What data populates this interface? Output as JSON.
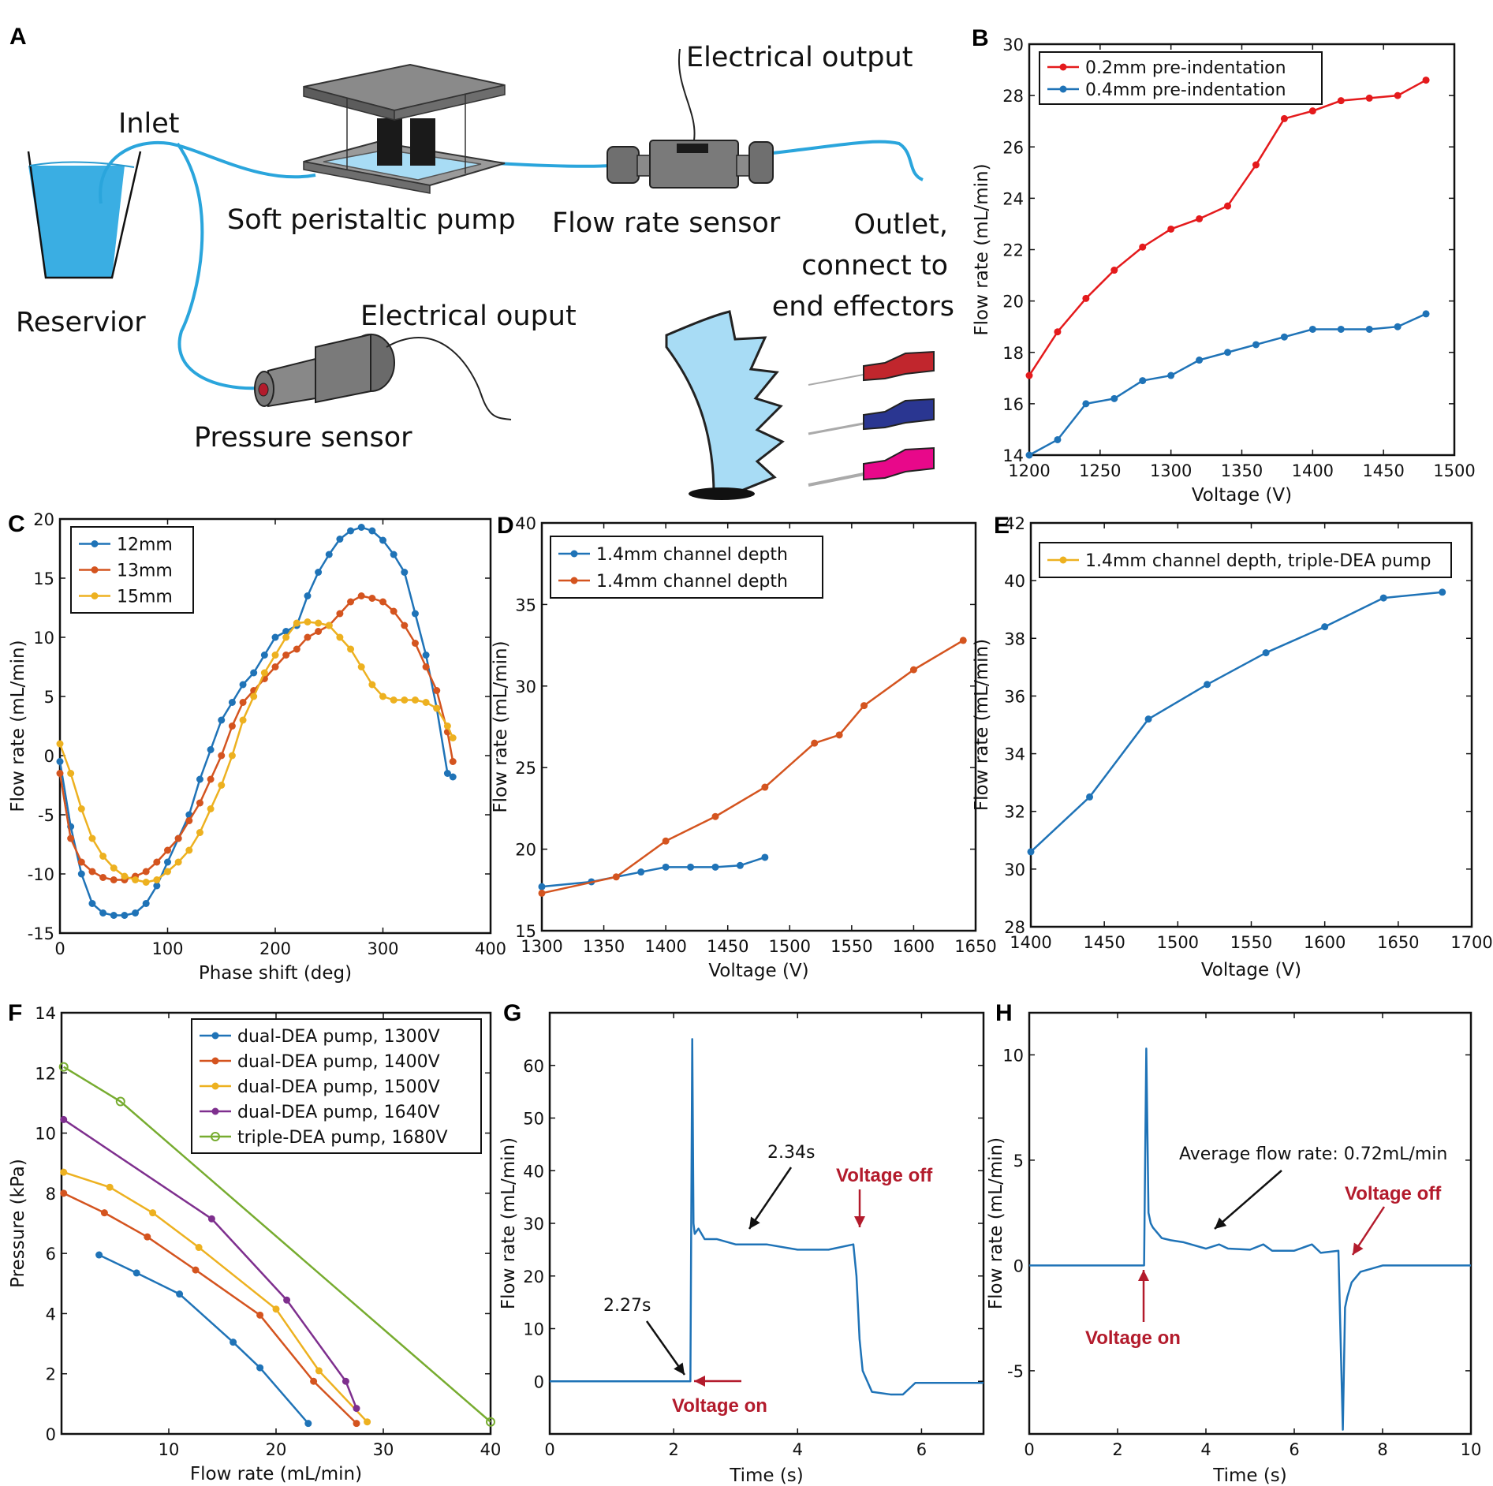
{
  "colors": {
    "blue": "#1f73b7",
    "orange": "#d4541f",
    "yellow": "#edb120",
    "purple": "#7e2f8e",
    "green": "#77ac30",
    "red": "#e41a1c",
    "water": "#a8dcf5",
    "tube": "#2aa5dc",
    "annotation_red": "#b31b2c"
  },
  "panel_letters": [
    "A",
    "B",
    "C",
    "D",
    "E",
    "F",
    "G",
    "H"
  ],
  "schematic": {
    "inlet": "Inlet",
    "reservoir": "Reservior",
    "pump": "Soft peristaltic pump",
    "electrical_output_top": "Electrical output",
    "flow_sensor": "Flow rate sensor",
    "outlet_line1": "Outlet,",
    "outlet_line2": "connect to",
    "outlet_line3": "end effectors",
    "electrical_output_pressure": "Electrical ouput",
    "pressure_sensor": "Pressure sensor",
    "icons": [
      "reservoir-beaker-icon",
      "peristaltic-pump-icon",
      "flow-sensor-icon",
      "pressure-sensor-icon",
      "soft-gripper-icon",
      "dispensing-needle-icon"
    ]
  },
  "chart_data": [
    {
      "panel": "B",
      "type": "line",
      "xlabel": "Voltage (V)",
      "ylabel": "Flow rate (mL/min)",
      "xlim": [
        1200,
        1500
      ],
      "ylim": [
        14,
        30
      ],
      "xticks": [
        1200,
        1250,
        1300,
        1350,
        1400,
        1450,
        1500
      ],
      "yticks": [
        14,
        16,
        18,
        20,
        22,
        24,
        26,
        28,
        30
      ],
      "legend_position": "top-left",
      "series": [
        {
          "name": "0.2mm pre-indentation",
          "color": "#e41a1c",
          "marker": "dot",
          "x": [
            1200,
            1220,
            1240,
            1260,
            1280,
            1300,
            1320,
            1340,
            1360,
            1380,
            1400,
            1420,
            1440,
            1460,
            1480
          ],
          "y": [
            17.1,
            18.8,
            20.1,
            21.2,
            22.1,
            22.8,
            23.2,
            23.7,
            25.3,
            27.1,
            27.4,
            27.8,
            27.9,
            28.0,
            28.6
          ]
        },
        {
          "name": "0.4mm pre-indentation",
          "color": "#1f73b7",
          "marker": "dot",
          "x": [
            1200,
            1220,
            1240,
            1260,
            1280,
            1300,
            1320,
            1340,
            1360,
            1380,
            1400,
            1420,
            1440,
            1460,
            1480
          ],
          "y": [
            14.0,
            14.6,
            16.0,
            16.2,
            16.9,
            17.1,
            17.7,
            18.0,
            18.3,
            18.6,
            18.9,
            18.9,
            18.9,
            19.0,
            19.5
          ]
        }
      ]
    },
    {
      "panel": "C",
      "type": "line",
      "xlabel": "Phase shift (deg)",
      "ylabel": "Flow rate (mL/min)",
      "xlim": [
        0,
        400
      ],
      "ylim": [
        -15,
        20
      ],
      "xticks": [
        0,
        100,
        200,
        300,
        400
      ],
      "yticks": [
        -15,
        -10,
        -5,
        0,
        5,
        10,
        15,
        20
      ],
      "legend_position": "top-left",
      "series": [
        {
          "name": "12mm",
          "color": "#1f73b7",
          "marker": "dot",
          "x": [
            0,
            10,
            20,
            30,
            40,
            50,
            60,
            70,
            80,
            90,
            100,
            110,
            120,
            130,
            140,
            150,
            160,
            170,
            180,
            190,
            200,
            210,
            220,
            230,
            240,
            250,
            260,
            270,
            280,
            290,
            300,
            310,
            320,
            330,
            340,
            350,
            360,
            365
          ],
          "y": [
            -0.5,
            -6,
            -10,
            -12.5,
            -13.3,
            -13.5,
            -13.5,
            -13.3,
            -12.5,
            -11,
            -9,
            -7,
            -5,
            -2,
            0.5,
            3,
            4.5,
            6,
            7,
            8.5,
            10,
            10.5,
            11,
            13.5,
            15.5,
            17,
            18.3,
            19,
            19.3,
            19,
            18.2,
            17,
            15.5,
            12,
            8.5,
            4,
            -1.5,
            -1.8
          ]
        },
        {
          "name": "13mm",
          "color": "#d4541f",
          "marker": "dot",
          "x": [
            0,
            10,
            20,
            30,
            40,
            50,
            60,
            70,
            80,
            90,
            100,
            110,
            120,
            130,
            140,
            150,
            160,
            170,
            180,
            190,
            200,
            210,
            220,
            230,
            240,
            250,
            260,
            270,
            280,
            290,
            300,
            310,
            320,
            330,
            340,
            350,
            360,
            365
          ],
          "y": [
            -1.5,
            -7,
            -9,
            -9.8,
            -10.3,
            -10.5,
            -10.5,
            -10.2,
            -9.8,
            -9,
            -8,
            -7,
            -5.5,
            -4,
            -2,
            0,
            2.5,
            4.5,
            5.5,
            6.5,
            7.5,
            8.5,
            9,
            10,
            10.5,
            11,
            12,
            13,
            13.5,
            13.3,
            13,
            12.2,
            11,
            9.5,
            7.5,
            5.5,
            2,
            -0.5
          ]
        },
        {
          "name": "15mm",
          "color": "#edb120",
          "marker": "dot",
          "x": [
            0,
            10,
            20,
            30,
            40,
            50,
            60,
            70,
            80,
            90,
            100,
            110,
            120,
            130,
            140,
            150,
            160,
            170,
            180,
            190,
            200,
            210,
            220,
            230,
            240,
            250,
            260,
            270,
            280,
            290,
            300,
            310,
            320,
            330,
            340,
            350,
            360,
            365
          ],
          "y": [
            1,
            -1.5,
            -4.5,
            -7,
            -8.5,
            -9.5,
            -10.2,
            -10.5,
            -10.7,
            -10.5,
            -9.8,
            -9,
            -8,
            -6.5,
            -4.5,
            -2.5,
            0,
            3,
            5,
            7,
            8.5,
            10,
            11.2,
            11.3,
            11.2,
            11,
            10,
            9,
            7.5,
            6,
            5,
            4.7,
            4.7,
            4.7,
            4.5,
            4,
            2.5,
            1.5
          ]
        }
      ]
    },
    {
      "panel": "D",
      "type": "line",
      "xlabel": "Voltage (V)",
      "ylabel": "Flow rate (mL/min)",
      "xlim": [
        1300,
        1650
      ],
      "ylim": [
        15,
        40
      ],
      "xticks": [
        1300,
        1350,
        1400,
        1450,
        1500,
        1550,
        1600,
        1650
      ],
      "yticks": [
        15,
        20,
        25,
        30,
        35,
        40
      ],
      "legend_position": "top-left",
      "series": [
        {
          "name": "1.4mm channel depth",
          "color": "#1f73b7",
          "marker": "dot",
          "x": [
            1300,
            1340,
            1380,
            1400,
            1420,
            1440,
            1460,
            1480
          ],
          "y": [
            17.7,
            18.0,
            18.6,
            18.9,
            18.9,
            18.9,
            19.0,
            19.5
          ]
        },
        {
          "name": "1.4mm channel depth",
          "color": "#d4541f",
          "marker": "dot",
          "x": [
            1300,
            1360,
            1400,
            1440,
            1480,
            1520,
            1540,
            1560,
            1600,
            1640
          ],
          "y": [
            17.3,
            18.3,
            20.5,
            22.0,
            23.8,
            26.5,
            27.0,
            28.8,
            31.0,
            32.8
          ]
        }
      ]
    },
    {
      "panel": "E",
      "type": "line",
      "xlabel": "Voltage (V)",
      "ylabel": "Flow rate (mL/min)",
      "xlim": [
        1400,
        1700
      ],
      "ylim": [
        28,
        42
      ],
      "xticks": [
        1400,
        1450,
        1500,
        1550,
        1600,
        1650,
        1700
      ],
      "yticks": [
        28,
        30,
        32,
        34,
        36,
        38,
        40,
        42
      ],
      "legend_position": "top",
      "legend_color": "#edb120",
      "series": [
        {
          "name": "1.4mm channel depth, triple-DEA pump",
          "color": "#1f73b7",
          "marker": "dot",
          "x": [
            1400,
            1440,
            1480,
            1520,
            1560,
            1600,
            1640,
            1680
          ],
          "y": [
            30.6,
            32.5,
            35.2,
            36.4,
            37.5,
            38.4,
            39.4,
            39.6
          ]
        }
      ]
    },
    {
      "panel": "F",
      "type": "line",
      "xlabel": "Flow rate (mL/min)",
      "ylabel": "Pressure (kPa)",
      "xlim": [
        0,
        40
      ],
      "ylim": [
        0,
        14
      ],
      "xticks": [
        10,
        20,
        30,
        40
      ],
      "yticks": [
        0,
        2,
        4,
        6,
        8,
        10,
        12,
        14
      ],
      "legend_position": "top-right",
      "series": [
        {
          "name": "dual-DEA pump, 1300V",
          "color": "#1f73b7",
          "marker": "dot",
          "x": [
            3.5,
            7,
            11,
            16,
            18.5,
            23
          ],
          "y": [
            5.95,
            5.35,
            4.65,
            3.05,
            2.2,
            0.35
          ]
        },
        {
          "name": "dual-DEA pump, 1400V",
          "color": "#d4541f",
          "marker": "dot",
          "x": [
            0.2,
            4,
            8,
            12.5,
            18.5,
            23.5,
            27.5
          ],
          "y": [
            8.0,
            7.35,
            6.55,
            5.45,
            3.95,
            1.75,
            0.35
          ]
        },
        {
          "name": "dual-DEA pump, 1500V",
          "color": "#edb120",
          "marker": "dot",
          "x": [
            0.2,
            4.5,
            8.5,
            12.8,
            20,
            24,
            28.5
          ],
          "y": [
            8.7,
            8.2,
            7.35,
            6.2,
            4.15,
            2.1,
            0.4
          ]
        },
        {
          "name": "dual-DEA pump, 1640V",
          "color": "#7e2f8e",
          "marker": "dot",
          "x": [
            0.2,
            14,
            21,
            26.5,
            27.5
          ],
          "y": [
            10.45,
            7.15,
            4.45,
            1.75,
            0.85
          ]
        },
        {
          "name": "triple-DEA pump, 1680V",
          "color": "#77ac30",
          "marker": "circle",
          "x": [
            0.2,
            5.5,
            40
          ],
          "y": [
            12.2,
            11.05,
            0.4
          ]
        }
      ]
    },
    {
      "panel": "G",
      "type": "line",
      "xlabel": "Time (s)",
      "ylabel": "Flow rate (mL/min)",
      "xlim": [
        0,
        7
      ],
      "ylim": [
        -10,
        70
      ],
      "xticks": [
        0,
        2,
        4,
        6
      ],
      "yticks": [
        0,
        10,
        20,
        30,
        40,
        50,
        60
      ],
      "annotations": {
        "t1": "2.27s",
        "t2": "2.34s",
        "on": "Voltage on",
        "off": "Voltage off"
      },
      "series": [
        {
          "color": "#1f73b7",
          "x": [
            0,
            2.27,
            2.3,
            2.32,
            2.34,
            2.4,
            2.5,
            2.7,
            3.0,
            3.5,
            4.0,
            4.5,
            4.9,
            4.95,
            5.0,
            5.05,
            5.2,
            5.5,
            5.7,
            5.9,
            7
          ],
          "y": [
            0,
            0,
            65,
            30,
            28,
            29,
            27,
            27,
            26,
            26,
            25,
            25,
            26,
            20,
            8,
            2,
            -2,
            -2.5,
            -2.5,
            -0.3,
            -0.3
          ]
        }
      ]
    },
    {
      "panel": "H",
      "type": "line",
      "xlabel": "Time (s)",
      "ylabel": "Flow rate (mL/min)",
      "xlim": [
        0,
        10
      ],
      "ylim": [
        -8,
        12
      ],
      "xticks": [
        0,
        2,
        4,
        6,
        8,
        10
      ],
      "yticks": [
        -5,
        0,
        5,
        10
      ],
      "annotations": {
        "avg": "Average flow rate: 0.72mL/min",
        "on": "Voltage on",
        "off": "Voltage off"
      },
      "series": [
        {
          "color": "#1f73b7",
          "x": [
            0,
            2.6,
            2.65,
            2.7,
            2.75,
            2.8,
            3.0,
            3.2,
            3.5,
            4.0,
            4.3,
            4.5,
            5.0,
            5.3,
            5.5,
            6.0,
            6.4,
            6.6,
            7.0,
            7.1,
            7.15,
            7.2,
            7.3,
            7.5,
            8.0,
            10
          ],
          "y": [
            0,
            0,
            10.3,
            2.5,
            2.0,
            1.8,
            1.3,
            1.2,
            1.1,
            0.8,
            1.0,
            0.8,
            0.75,
            1.0,
            0.7,
            0.7,
            1.0,
            0.6,
            0.7,
            -7.8,
            -2,
            -1.5,
            -0.8,
            -0.3,
            0,
            0
          ]
        }
      ]
    }
  ]
}
